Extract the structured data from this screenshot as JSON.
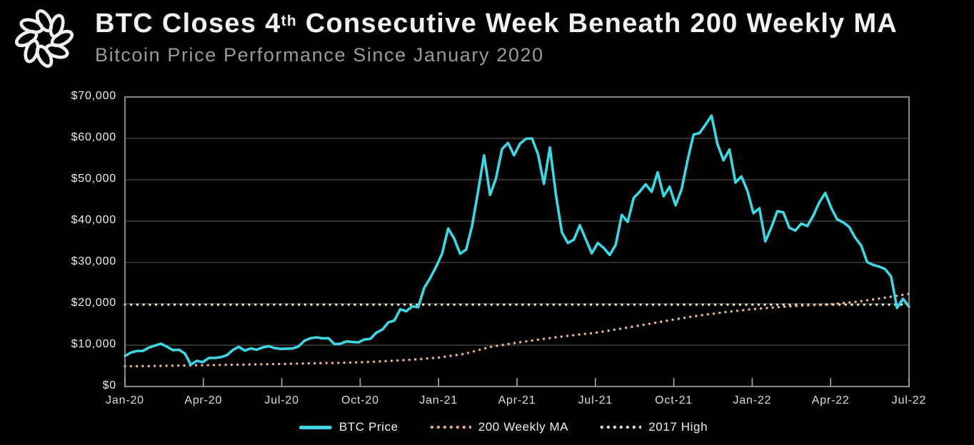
{
  "header": {
    "logo": "knot-wreath",
    "title": {
      "text_pre": "BTC Closes 4",
      "superscript": "th",
      "text_post": " Consecutive Week Beneath 200 Weekly MA"
    },
    "subtitle": "Bitcoin Price Performance Since January 2020"
  },
  "chart_data": {
    "type": "line",
    "title": "BTC Closes 4th Consecutive Week Beneath 200 Weekly MA",
    "subtitle": "Bitcoin Price Performance Since January 2020",
    "xlabel": "",
    "ylabel": "",
    "xlim_months": [
      0,
      30
    ],
    "ylim": [
      0,
      70000
    ],
    "grid": "horizontal",
    "legend_position": "bottom-center",
    "colors": {
      "background": "#000000",
      "axis": "#a8a8a8",
      "grid": "#4d4d4d",
      "title": "#f2f2f2",
      "subtitle": "#9a9a9a",
      "tick_labels": "#ececec"
    },
    "y_ticks": [
      {
        "value": 70000,
        "label": "$70,000"
      },
      {
        "value": 60000,
        "label": "$60,000"
      },
      {
        "value": 50000,
        "label": "$50,000"
      },
      {
        "value": 40000,
        "label": "$40,000"
      },
      {
        "value": 30000,
        "label": "$30,000"
      },
      {
        "value": 20000,
        "label": "$20,000"
      },
      {
        "value": 10000,
        "label": "$10,000"
      },
      {
        "value": 0,
        "label": "$0"
      }
    ],
    "x_ticks": [
      {
        "month": 0,
        "label": "Jan-20"
      },
      {
        "month": 3,
        "label": "Apr-20"
      },
      {
        "month": 6,
        "label": "Jul-20"
      },
      {
        "month": 9,
        "label": "Oct-20"
      },
      {
        "month": 12,
        "label": "Jan-21"
      },
      {
        "month": 15,
        "label": "Apr-21"
      },
      {
        "month": 18,
        "label": "Jul-21"
      },
      {
        "month": 21,
        "label": "Oct-21"
      },
      {
        "month": 24,
        "label": "Jan-22"
      },
      {
        "month": 27,
        "label": "Apr-22"
      },
      {
        "month": 30,
        "label": "Jul-22"
      }
    ],
    "series": [
      {
        "name": "BTC Price",
        "style": "solid",
        "color": "#3dd6e3",
        "cadence": "weekly from Jan-2020 to Jul-2022",
        "values": [
          7400,
          8200,
          8600,
          8600,
          9400,
          9900,
          10350,
          9650,
          8800,
          8900,
          8000,
          5300,
          6200,
          5900,
          6900,
          6900,
          7100,
          7550,
          8800,
          9600,
          8700,
          9200,
          8900,
          9450,
          9750,
          9300,
          9100,
          9150,
          9200,
          9700,
          11100,
          11680,
          11900,
          11650,
          11700,
          10250,
          10340,
          10920,
          10770,
          10670,
          11370,
          11510,
          13030,
          13760,
          15480,
          15960,
          18700,
          18200,
          19380,
          19170,
          23850,
          26250,
          28990,
          32200,
          38200,
          35800,
          32100,
          33100,
          38900,
          47200,
          55900,
          46300,
          50400,
          57400,
          58900,
          55900,
          58700,
          59900,
          60000,
          56200,
          49000,
          57800,
          46400,
          37300,
          34700,
          35500,
          39000,
          35600,
          32200,
          34700,
          33500,
          31800,
          34300,
          41500,
          39800,
          45600,
          47100,
          48900,
          47100,
          51800,
          46000,
          48300,
          43800,
          47700,
          54700,
          60900,
          61300,
          63300,
          65500,
          58600,
          54700,
          57300,
          49300,
          50800,
          47300,
          41900,
          43100,
          35100,
          38500,
          42400,
          42100,
          38400,
          37700,
          39400,
          38800,
          41300,
          44500,
          46800,
          43200,
          40400,
          39700,
          38600,
          36000,
          34100,
          30100,
          29400,
          29000,
          28400,
          26600,
          19000,
          21200,
          19300
        ]
      },
      {
        "name": "200 Weekly MA",
        "style": "dotted",
        "color": "#e6b18f",
        "cadence": "monthly from Jan-2020 to Jul-2022",
        "values": [
          4900,
          4950,
          5050,
          5150,
          5250,
          5350,
          5450,
          5600,
          5700,
          5850,
          6150,
          6500,
          7000,
          7900,
          9600,
          10600,
          11500,
          12300,
          13000,
          14000,
          15100,
          16200,
          17200,
          18000,
          18700,
          19200,
          19600,
          19900,
          20500,
          21400,
          22400
        ]
      },
      {
        "name": "2017 High",
        "style": "dotted",
        "color": "#f0eac2",
        "value": 19800
      }
    ]
  }
}
